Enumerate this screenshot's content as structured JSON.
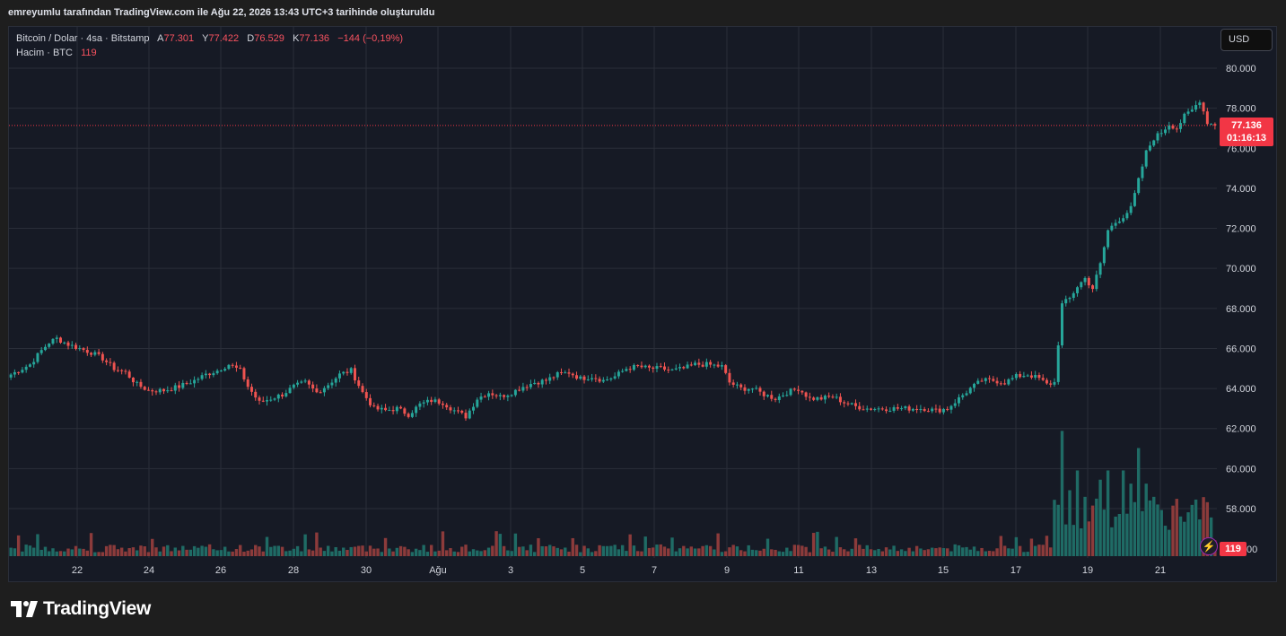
{
  "header": {
    "text": "emreyumlu tarafından TradingView.com ile Ağu 22, 2026 13:43 UTC+3 tarihinde oluşturuldu"
  },
  "legend": {
    "symbol": "Bitcoin / Dolar · 4sa · Bitstamp",
    "open_label": "A",
    "open_value": "77.301",
    "high_label": "Y",
    "high_value": "77.422",
    "low_label": "D",
    "low_value": "76.529",
    "close_label": "K",
    "close_value": "77.136",
    "change": "−144 (−0,19%)",
    "volume_label": "Hacim · BTC",
    "volume_value": "119"
  },
  "currency_button": "USD",
  "price_badge": {
    "price": "77.136",
    "countdown": "01:16:13"
  },
  "volume_badge": "119",
  "brand": {
    "name": "TradingView"
  },
  "colors": {
    "up": "#26a69a",
    "down": "#ef5350",
    "vol_up": "#1f6b65",
    "vol_down": "#8c3b3b",
    "grid": "#2a2e39",
    "background": "#161a25"
  },
  "chart_data": {
    "type": "candlestick",
    "price_ticks": [
      "80.000",
      "78.000",
      "76.000",
      "74.000",
      "72.000",
      "70.000",
      "68.000",
      "66.000",
      "64.000",
      "62.000",
      "60.000",
      "58.000"
    ],
    "volume_tick_partial": "00",
    "date_ticks": [
      "22",
      "24",
      "26",
      "28",
      "30",
      "Ağu",
      "3",
      "5",
      "7",
      "9",
      "11",
      "13",
      "15",
      "17",
      "19",
      "21"
    ],
    "last_price": 77136,
    "price_range": [
      56000,
      81000
    ],
    "close_path": [
      [
        0,
        64700
      ],
      [
        2,
        64900
      ],
      [
        5,
        65200
      ],
      [
        8,
        65900
      ],
      [
        10,
        66300
      ],
      [
        12,
        66500
      ],
      [
        15,
        66200
      ],
      [
        18,
        66000
      ],
      [
        21,
        65800
      ],
      [
        24,
        65500
      ],
      [
        27,
        65000
      ],
      [
        30,
        64800
      ],
      [
        33,
        64200
      ],
      [
        36,
        63900
      ],
      [
        40,
        63900
      ],
      [
        44,
        64100
      ],
      [
        48,
        64400
      ],
      [
        51,
        64700
      ],
      [
        54,
        64900
      ],
      [
        57,
        65200
      ],
      [
        60,
        64900
      ],
      [
        62,
        64100
      ],
      [
        65,
        63300
      ],
      [
        68,
        63500
      ],
      [
        71,
        63700
      ],
      [
        74,
        64100
      ],
      [
        77,
        64300
      ],
      [
        80,
        63800
      ],
      [
        83,
        64200
      ],
      [
        86,
        64700
      ],
      [
        89,
        64900
      ],
      [
        92,
        63800
      ],
      [
        95,
        63000
      ],
      [
        98,
        62900
      ],
      [
        101,
        63000
      ],
      [
        104,
        62700
      ],
      [
        107,
        63200
      ],
      [
        110,
        63400
      ],
      [
        113,
        63300
      ],
      [
        116,
        62900
      ],
      [
        119,
        62600
      ],
      [
        122,
        63500
      ],
      [
        125,
        63800
      ],
      [
        128,
        63600
      ],
      [
        131,
        63800
      ],
      [
        134,
        64100
      ],
      [
        137,
        64300
      ],
      [
        140,
        64400
      ],
      [
        143,
        64700
      ],
      [
        146,
        64800
      ],
      [
        149,
        64500
      ],
      [
        152,
        64600
      ],
      [
        155,
        64400
      ],
      [
        158,
        64600
      ],
      [
        161,
        65000
      ],
      [
        164,
        65100
      ],
      [
        167,
        65000
      ],
      [
        170,
        65000
      ],
      [
        173,
        64900
      ],
      [
        176,
        65000
      ],
      [
        179,
        65200
      ],
      [
        182,
        65200
      ],
      [
        186,
        65100
      ],
      [
        188,
        64300
      ],
      [
        191,
        64000
      ],
      [
        194,
        64000
      ],
      [
        197,
        63700
      ],
      [
        200,
        63500
      ],
      [
        203,
        63800
      ],
      [
        206,
        64000
      ],
      [
        209,
        63500
      ],
      [
        212,
        63500
      ],
      [
        215,
        63600
      ],
      [
        218,
        63300
      ],
      [
        221,
        63100
      ],
      [
        224,
        63000
      ],
      [
        227,
        63000
      ],
      [
        230,
        63000
      ],
      [
        233,
        63000
      ],
      [
        236,
        63000
      ],
      [
        239,
        63000
      ],
      [
        242,
        62900
      ],
      [
        245,
        63000
      ],
      [
        248,
        63500
      ],
      [
        251,
        64000
      ],
      [
        254,
        64400
      ],
      [
        257,
        64400
      ],
      [
        260,
        64300
      ],
      [
        263,
        64600
      ],
      [
        266,
        64700
      ],
      [
        269,
        64500
      ],
      [
        271,
        64200
      ],
      [
        273,
        64300
      ],
      [
        275,
        68200
      ],
      [
        277,
        68500
      ],
      [
        279,
        69100
      ],
      [
        281,
        69500
      ],
      [
        283,
        69000
      ],
      [
        285,
        70200
      ],
      [
        287,
        71900
      ],
      [
        289,
        72300
      ],
      [
        291,
        72600
      ],
      [
        293,
        73000
      ],
      [
        295,
        74400
      ],
      [
        297,
        75800
      ],
      [
        299,
        76500
      ],
      [
        301,
        76800
      ],
      [
        303,
        77200
      ],
      [
        305,
        77000
      ],
      [
        307,
        77600
      ],
      [
        309,
        77900
      ],
      [
        311,
        78400
      ],
      [
        313,
        77300
      ],
      [
        315,
        77136
      ]
    ],
    "volume_spikes": [
      [
        275,
        0.95
      ],
      [
        277,
        0.5
      ],
      [
        279,
        0.65
      ],
      [
        281,
        0.45
      ],
      [
        285,
        0.58
      ],
      [
        287,
        0.65
      ],
      [
        289,
        0.3
      ],
      [
        291,
        0.65
      ],
      [
        293,
        0.55
      ],
      [
        295,
        0.82
      ],
      [
        297,
        0.55
      ],
      [
        299,
        0.45
      ],
      [
        301,
        0.35
      ],
      [
        303,
        0.2
      ],
      [
        315,
        0.12
      ]
    ]
  }
}
